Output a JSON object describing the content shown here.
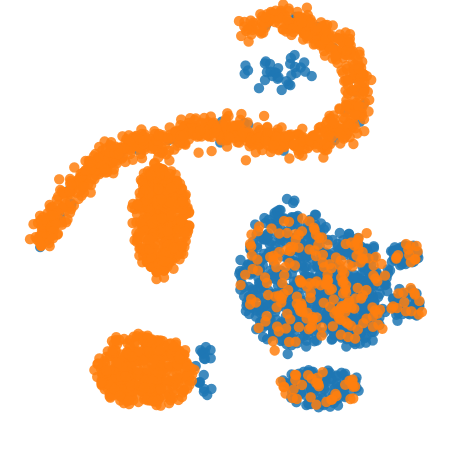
{
  "chart_data": {
    "type": "scatter",
    "title": "",
    "xlabel": "",
    "ylabel": "",
    "grid": false,
    "legend": "none",
    "axes_visible": false,
    "xlim": [
      0,
      100
    ],
    "ylim": [
      0,
      100
    ],
    "series": [
      {
        "color": "#1f77b4",
        "clusters": [
          {
            "kind": "blob",
            "cx": 63,
            "cy": 40,
            "rx": 12,
            "ry": 18,
            "count": 460
          },
          {
            "kind": "blob",
            "cx": 77,
            "cy": 37,
            "rx": 9,
            "ry": 14,
            "count": 300
          },
          {
            "kind": "blob",
            "cx": 70,
            "cy": 15,
            "rx": 10,
            "ry": 5,
            "count": 130
          },
          {
            "kind": "blob",
            "cx": 89,
            "cy": 34,
            "rx": 4,
            "ry": 5,
            "count": 60
          },
          {
            "kind": "blob",
            "cx": 89,
            "cy": 45,
            "rx": 4,
            "ry": 3,
            "count": 50
          },
          {
            "kind": "blob",
            "cx": 44,
            "cy": 19,
            "rx": 3,
            "ry": 6,
            "count": 18
          },
          {
            "kind": "blob",
            "cx": 60,
            "cy": 86,
            "rx": 9,
            "ry": 5,
            "count": 30
          },
          {
            "kind": "curve",
            "points": [
              [
                53,
                96
              ],
              [
                60,
                98
              ],
              [
                68,
                96
              ],
              [
                74,
                92
              ],
              [
                78,
                86
              ],
              [
                78,
                79
              ],
              [
                76,
                74
              ],
              [
                70,
                71
              ],
              [
                62,
                70
              ],
              [
                54,
                72
              ],
              [
                45,
                74
              ],
              [
                36,
                71
              ],
              [
                26,
                69
              ],
              [
                18,
                64
              ],
              [
                12,
                57
              ],
              [
                7,
                48
              ]
            ],
            "spread": 1.2,
            "count": 45
          }
        ]
      },
      {
        "color": "#ff7f0e",
        "clusters": [
          {
            "kind": "curve",
            "points": [
              [
                53,
                96
              ],
              [
                60,
                98
              ],
              [
                68,
                96
              ],
              [
                74,
                92
              ],
              [
                78,
                86
              ],
              [
                78,
                79
              ],
              [
                76,
                74
              ],
              [
                70,
                71
              ],
              [
                62,
                70
              ],
              [
                54,
                72
              ],
              [
                45,
                74
              ],
              [
                36,
                71
              ],
              [
                26,
                69
              ],
              [
                18,
                64
              ],
              [
                12,
                57
              ],
              [
                7,
                48
              ]
            ],
            "spread": 1.6,
            "count": 900
          },
          {
            "kind": "blob",
            "cx": 34,
            "cy": 53,
            "rx": 7,
            "ry": 14,
            "count": 420
          },
          {
            "kind": "blob",
            "cx": 30,
            "cy": 19,
            "rx": 12,
            "ry": 9,
            "count": 400
          },
          {
            "kind": "blob",
            "cx": 63,
            "cy": 40,
            "rx": 12,
            "ry": 18,
            "count": 110
          },
          {
            "kind": "blob",
            "cx": 77,
            "cy": 37,
            "rx": 9,
            "ry": 14,
            "count": 80
          },
          {
            "kind": "blob",
            "cx": 70,
            "cy": 15,
            "rx": 10,
            "ry": 5,
            "count": 35
          },
          {
            "kind": "blob",
            "cx": 89,
            "cy": 34,
            "rx": 4,
            "ry": 5,
            "count": 14
          },
          {
            "kind": "blob",
            "cx": 89,
            "cy": 45,
            "rx": 4,
            "ry": 3,
            "count": 12
          }
        ]
      }
    ]
  }
}
